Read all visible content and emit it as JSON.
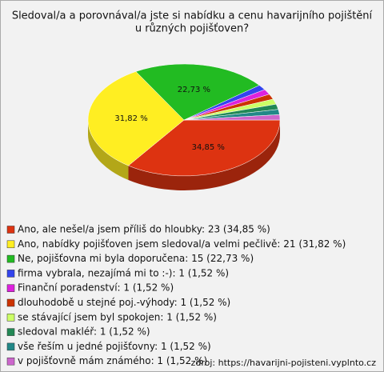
{
  "chart_data": {
    "type": "pie3d",
    "title": [
      "Sledoval/a a porovnával/a jste si nabídku a cenu havarijního pojištění",
      "u různých pojišťoven?"
    ],
    "categories": [
      "Ano, ale nešel/a jsem příliš do hloubky: 23 (34,85 %)",
      "Ano, nabídky pojišťoven jsem sledoval/a velmi pečlivě: 21 (31,82 %)",
      "Ne, pojišťovna mi byla doporučena: 15 (22,73 %)",
      "firma vybrala, nezajímá mi to :-): 1 (1,52 %)",
      "Finanční poradenství: 1 (1,52 %)",
      "dlouhodobě u stejné poj.-výhody: 1 (1,52 %)",
      "se stávající jsem byl spokojen: 1 (1,52 %)",
      "sledoval makléř: 1 (1,52 %)",
      "vše řeším u jedné pojišťovny: 1 (1,52 %)",
      "v pojišťovně mám známého: 1 (1,52 %)"
    ],
    "values": [
      34.85,
      31.82,
      22.73,
      1.52,
      1.52,
      1.52,
      1.52,
      1.52,
      1.52,
      1.52
    ],
    "value_labels": [
      "34,85 %",
      "31,82 %",
      "22,73 %",
      null,
      null,
      null,
      null,
      null,
      null,
      null
    ],
    "colors": [
      "#dd3311",
      "#ffee22",
      "#22bb22",
      "#3344ee",
      "#dd22dd",
      "#cc3300",
      "#ccff66",
      "#228855",
      "#228888",
      "#cc66cc"
    ],
    "source": "zdroj: https://havarijni-pojisteni.vyplnto.cz"
  }
}
